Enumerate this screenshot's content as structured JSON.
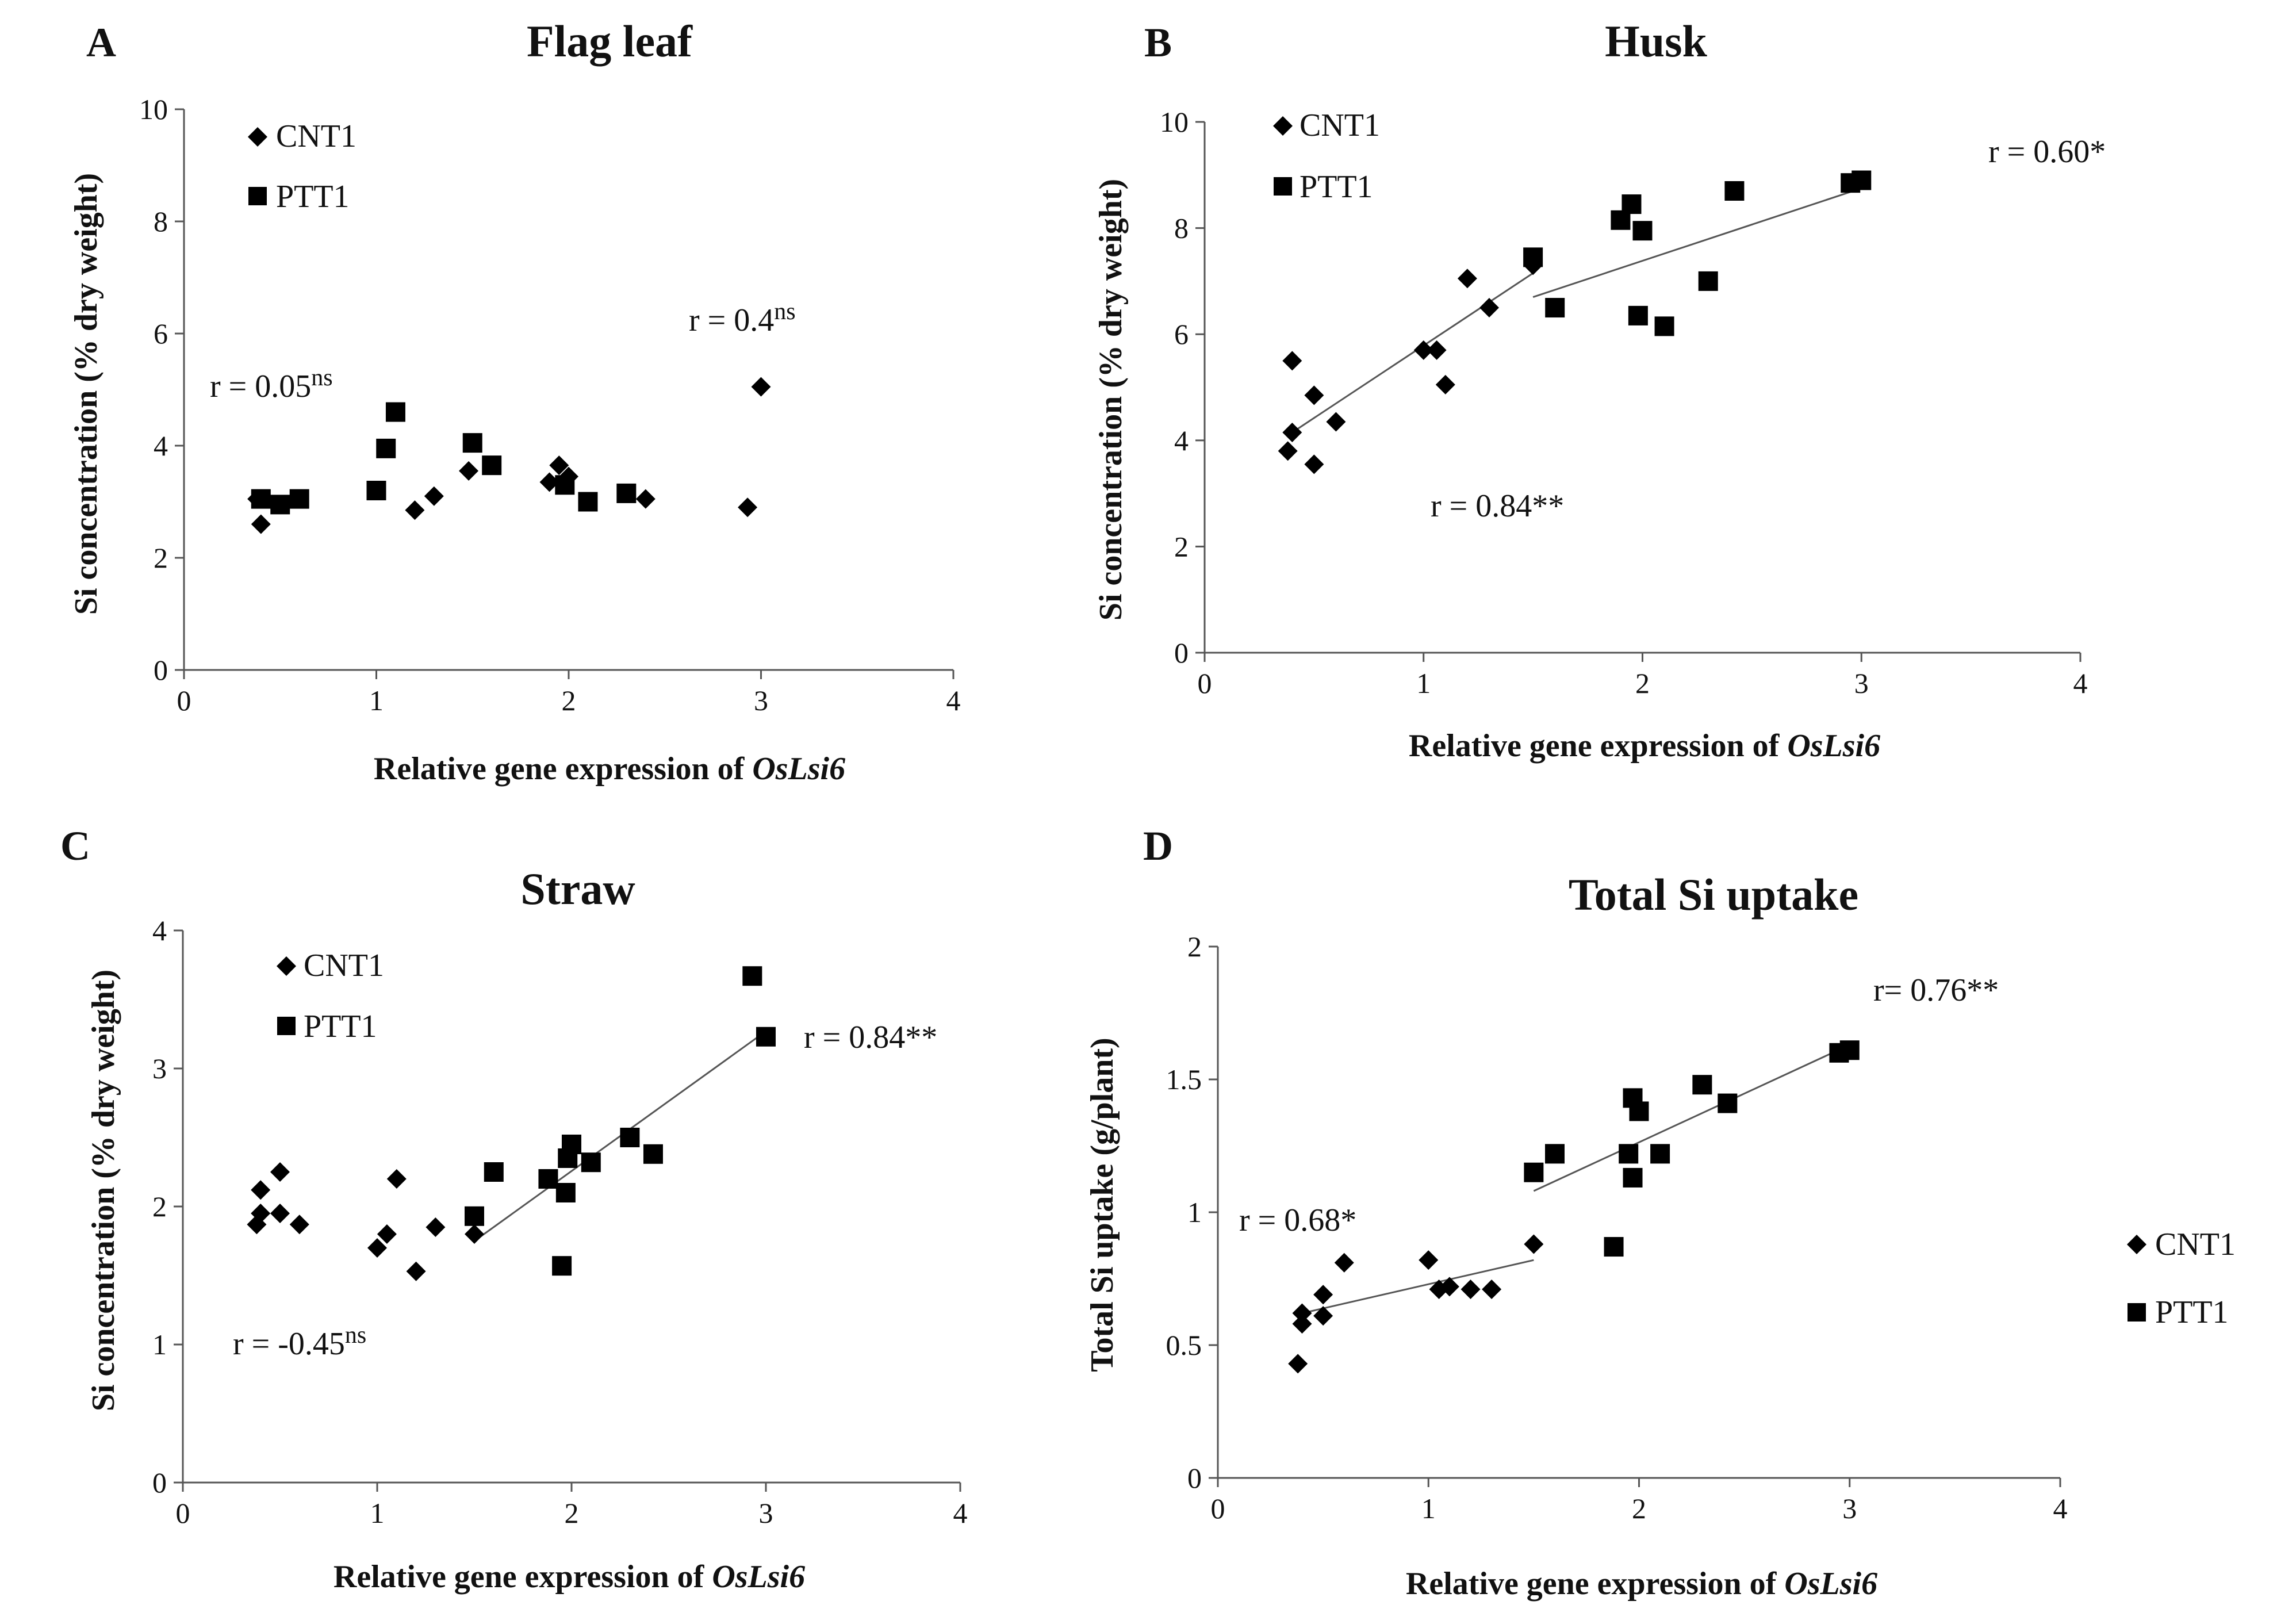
{
  "chart_data": [
    {
      "panel": "A",
      "type": "scatter",
      "title": "Flag leaf",
      "xlabel_prefix": "Relative gene expression of ",
      "xlabel_gene": "OsLsi6",
      "ylabel": "Si concentration  (% dry weight)",
      "xlim": [
        0,
        4
      ],
      "ylim": [
        0,
        10
      ],
      "xticks": [
        0,
        1,
        2,
        3,
        4
      ],
      "yticks": [
        0,
        2,
        4,
        6,
        8,
        10
      ],
      "legend": [
        {
          "name": "CNT1",
          "marker": "diamond"
        },
        {
          "name": "PTT1",
          "marker": "square"
        }
      ],
      "series": [
        {
          "name": "CNT1",
          "marker": "diamond",
          "points": [
            [
              0.38,
              3.05
            ],
            [
              0.4,
              2.6
            ],
            [
              1.2,
              2.85
            ],
            [
              1.3,
              3.1
            ],
            [
              1.48,
              3.55
            ],
            [
              1.9,
              3.35
            ],
            [
              1.95,
              3.65
            ],
            [
              2.0,
              3.45
            ],
            [
              2.4,
              3.05
            ],
            [
              2.93,
              2.9
            ],
            [
              3.0,
              5.05
            ]
          ]
        },
        {
          "name": "PTT1",
          "marker": "square",
          "points": [
            [
              0.4,
              3.05
            ],
            [
              0.5,
              2.95
            ],
            [
              0.6,
              3.05
            ],
            [
              1.0,
              3.2
            ],
            [
              1.05,
              3.95
            ],
            [
              1.1,
              4.6
            ],
            [
              1.5,
              4.05
            ],
            [
              1.6,
              3.65
            ],
            [
              1.98,
              3.3
            ],
            [
              2.1,
              3.0
            ],
            [
              2.3,
              3.15
            ]
          ]
        }
      ],
      "annotations": [
        {
          "text": "r = 0.05",
          "sup": "ns"
        },
        {
          "text": "r = 0.4",
          "sup": "ns"
        }
      ]
    },
    {
      "panel": "B",
      "type": "scatter",
      "title": "Husk",
      "xlabel_prefix": "Relative gene expression of ",
      "xlabel_gene": "OsLsi6",
      "ylabel": "Si concentration  (% dry weight)",
      "xlim": [
        0,
        4
      ],
      "ylim": [
        0,
        10
      ],
      "xticks": [
        0,
        1,
        2,
        3,
        4
      ],
      "yticks": [
        0,
        2,
        4,
        6,
        8,
        10
      ],
      "legend": [
        {
          "name": "CNT1",
          "marker": "diamond"
        },
        {
          "name": "PTT1",
          "marker": "square"
        }
      ],
      "series": [
        {
          "name": "CNT1",
          "marker": "diamond",
          "points": [
            [
              0.38,
              3.8
            ],
            [
              0.4,
              4.15
            ],
            [
              0.4,
              5.5
            ],
            [
              0.5,
              3.55
            ],
            [
              0.5,
              4.85
            ],
            [
              0.6,
              4.35
            ],
            [
              1.0,
              5.7
            ],
            [
              1.06,
              5.7
            ],
            [
              1.1,
              5.05
            ],
            [
              1.2,
              7.05
            ],
            [
              1.3,
              6.5
            ],
            [
              1.5,
              7.3
            ]
          ]
        },
        {
          "name": "PTT1",
          "marker": "square",
          "points": [
            [
              1.5,
              7.45
            ],
            [
              1.6,
              6.5
            ],
            [
              1.9,
              8.15
            ],
            [
              1.95,
              8.45
            ],
            [
              1.98,
              6.35
            ],
            [
              2.0,
              7.95
            ],
            [
              2.1,
              6.15
            ],
            [
              2.3,
              7.0
            ],
            [
              2.42,
              8.7
            ],
            [
              2.95,
              8.85
            ],
            [
              3.0,
              8.9
            ]
          ]
        }
      ],
      "trendlines": [
        {
          "x": [
            0.4,
            1.5
          ],
          "y": [
            4.15,
            7.15
          ]
        },
        {
          "x": [
            1.5,
            3.0
          ],
          "y": [
            6.7,
            8.75
          ]
        }
      ],
      "annotations": [
        {
          "text": "r = 0.60*",
          "sup": ""
        },
        {
          "text": "r = 0.84**",
          "sup": ""
        }
      ]
    },
    {
      "panel": "C",
      "type": "scatter",
      "title": "Straw",
      "xlabel_prefix": "Relative gene expression of ",
      "xlabel_gene": "OsLsi6",
      "ylabel": "Si concentration (% dry weight)",
      "xlim": [
        0,
        4
      ],
      "ylim": [
        0,
        4
      ],
      "xticks": [
        0,
        1,
        2,
        3,
        4
      ],
      "yticks": [
        0,
        1,
        2,
        3,
        4
      ],
      "legend": [
        {
          "name": "CNT1",
          "marker": "diamond"
        },
        {
          "name": "PTT1",
          "marker": "square"
        }
      ],
      "series": [
        {
          "name": "CNT1",
          "marker": "diamond",
          "points": [
            [
              0.38,
              1.87
            ],
            [
              0.4,
              1.95
            ],
            [
              0.4,
              2.12
            ],
            [
              0.5,
              2.25
            ],
            [
              0.5,
              1.95
            ],
            [
              0.6,
              1.87
            ],
            [
              1.0,
              1.7
            ],
            [
              1.05,
              1.8
            ],
            [
              1.1,
              2.2
            ],
            [
              1.2,
              1.53
            ],
            [
              1.3,
              1.85
            ],
            [
              1.5,
              1.8
            ]
          ]
        },
        {
          "name": "PTT1",
          "marker": "square",
          "points": [
            [
              1.5,
              1.93
            ],
            [
              1.6,
              2.25
            ],
            [
              1.88,
              2.2
            ],
            [
              1.95,
              1.57
            ],
            [
              1.97,
              2.1
            ],
            [
              1.98,
              2.35
            ],
            [
              2.0,
              2.45
            ],
            [
              2.1,
              2.32
            ],
            [
              2.3,
              2.5
            ],
            [
              2.42,
              2.38
            ],
            [
              2.93,
              3.67
            ],
            [
              3.0,
              3.23
            ]
          ]
        }
      ],
      "trendlines": [
        {
          "x": [
            1.5,
            3.0
          ],
          "y": [
            1.75,
            3.27
          ]
        }
      ],
      "annotations": [
        {
          "text": "r = 0.84**",
          "sup": ""
        },
        {
          "text": "r = -0.45",
          "sup": "ns"
        }
      ]
    },
    {
      "panel": "D",
      "type": "scatter",
      "title": "Total Si uptake",
      "xlabel_prefix": "Relative gene expression of ",
      "xlabel_gene": "OsLsi6",
      "ylabel": "Total Si uptake (g/plant)",
      "xlim": [
        0,
        4
      ],
      "ylim": [
        0,
        2
      ],
      "xticks": [
        0,
        1,
        2,
        3,
        4
      ],
      "yticks": [
        0,
        0.5,
        1,
        1.5,
        2
      ],
      "ytick_labels": [
        "0",
        "0.5",
        "1",
        "1.5",
        "2"
      ],
      "legend": [
        {
          "name": "CNT1",
          "marker": "diamond"
        },
        {
          "name": "PTT1",
          "marker": "square"
        }
      ],
      "series": [
        {
          "name": "CNT1",
          "marker": "diamond",
          "points": [
            [
              0.38,
              0.43
            ],
            [
              0.4,
              0.58
            ],
            [
              0.4,
              0.62
            ],
            [
              0.5,
              0.61
            ],
            [
              0.5,
              0.69
            ],
            [
              0.6,
              0.81
            ],
            [
              1.0,
              0.82
            ],
            [
              1.05,
              0.71
            ],
            [
              1.1,
              0.72
            ],
            [
              1.2,
              0.71
            ],
            [
              1.3,
              0.71
            ],
            [
              1.5,
              0.88
            ]
          ]
        },
        {
          "name": "PTT1",
          "marker": "square",
          "points": [
            [
              1.5,
              1.15
            ],
            [
              1.6,
              1.22
            ],
            [
              1.88,
              0.87
            ],
            [
              1.95,
              1.22
            ],
            [
              1.97,
              1.13
            ],
            [
              1.97,
              1.43
            ],
            [
              2.0,
              1.38
            ],
            [
              2.1,
              1.22
            ],
            [
              2.3,
              1.48
            ],
            [
              2.42,
              1.41
            ],
            [
              2.95,
              1.6
            ],
            [
              3.0,
              1.61
            ]
          ]
        }
      ],
      "trendlines": [
        {
          "x": [
            0.4,
            1.5
          ],
          "y": [
            0.62,
            0.82
          ]
        },
        {
          "x": [
            1.5,
            3.0
          ],
          "y": [
            1.08,
            1.63
          ]
        }
      ],
      "annotations": [
        {
          "text": "r=  0.76**",
          "sup": ""
        },
        {
          "text": "r = 0.68*",
          "sup": ""
        }
      ]
    }
  ]
}
